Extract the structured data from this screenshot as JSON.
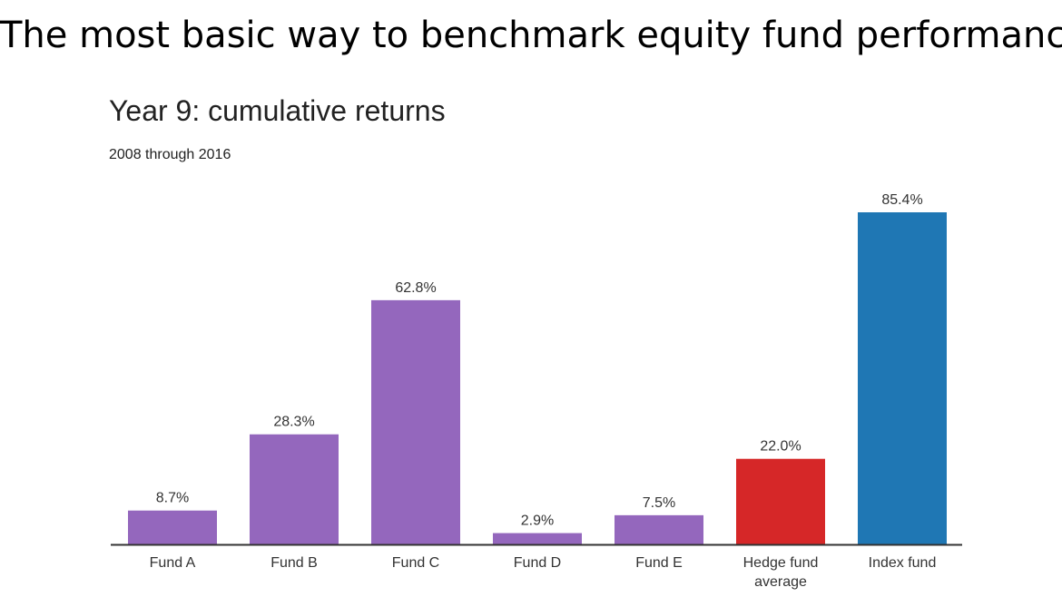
{
  "slide": {
    "title": "The most basic way to benchmark equity fund performance"
  },
  "chart_data": {
    "type": "bar",
    "title": "Year 9: cumulative returns",
    "subtitle": "2008 through 2016",
    "xlabel": "",
    "ylabel": "",
    "unit": "%",
    "ylim": [
      0,
      85.4
    ],
    "grid": false,
    "categories": [
      "Fund A",
      "Fund B",
      "Fund C",
      "Fund D",
      "Fund E",
      "Hedge fund average",
      "Index fund"
    ],
    "category_lines": [
      [
        "Fund A"
      ],
      [
        "Fund B"
      ],
      [
        "Fund C"
      ],
      [
        "Fund D"
      ],
      [
        "Fund E"
      ],
      [
        "Hedge fund",
        "average"
      ],
      [
        "Index fund"
      ]
    ],
    "values": [
      8.7,
      28.3,
      62.8,
      2.9,
      7.5,
      22.0,
      85.4
    ],
    "value_labels": [
      "8.7%",
      "28.3%",
      "62.8%",
      "2.9%",
      "7.5%",
      "22.0%",
      "85.4%"
    ],
    "colors": [
      "#9467bd",
      "#9467bd",
      "#9467bd",
      "#9467bd",
      "#9467bd",
      "#d62728",
      "#1f77b4"
    ],
    "axis_color": "#333333"
  }
}
